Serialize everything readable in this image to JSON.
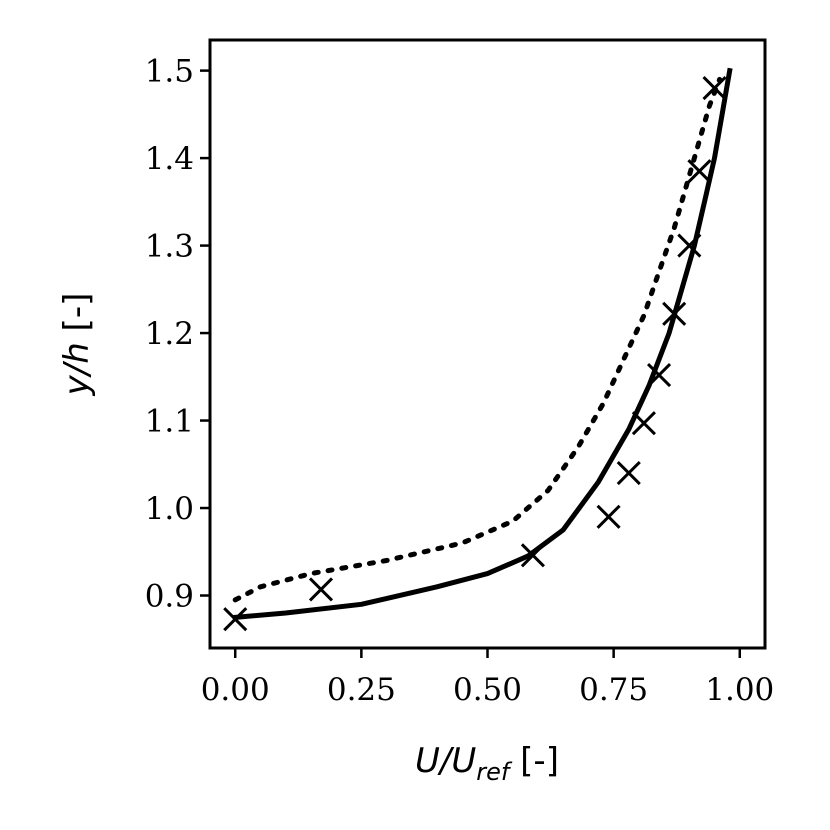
{
  "chart_data": {
    "type": "line",
    "xlabel": {
      "main": "U/U",
      "sub": "ref",
      "unit": " [-]"
    },
    "ylabel": {
      "main": "y/h",
      "unit": " [-]"
    },
    "xlim": [
      -0.05,
      1.05
    ],
    "ylim": [
      0.84,
      1.535
    ],
    "xticks": [
      "0.00",
      "0.25",
      "0.50",
      "0.75",
      "1.00"
    ],
    "xtick_values": [
      0.0,
      0.25,
      0.5,
      0.75,
      1.0
    ],
    "yticks": [
      "0.9",
      "1.0",
      "1.1",
      "1.2",
      "1.3",
      "1.4",
      "1.5"
    ],
    "ytick_values": [
      0.9,
      1.0,
      1.1,
      1.2,
      1.3,
      1.4,
      1.5
    ],
    "grid": false,
    "colors": {
      "series": "#000000"
    },
    "series": [
      {
        "style": "solid",
        "x": [
          0.0,
          0.1,
          0.25,
          0.4,
          0.5,
          0.58,
          0.65,
          0.72,
          0.78,
          0.82,
          0.86,
          0.89,
          0.91,
          0.93,
          0.95,
          0.965,
          0.98
        ],
        "y": [
          0.875,
          0.88,
          0.89,
          0.91,
          0.925,
          0.945,
          0.975,
          1.03,
          1.09,
          1.14,
          1.2,
          1.26,
          1.3,
          1.35,
          1.4,
          1.45,
          1.5
        ]
      },
      {
        "style": "dotted",
        "x": [
          0.0,
          0.05,
          0.15,
          0.3,
          0.45,
          0.55,
          0.62,
          0.68,
          0.73,
          0.77,
          0.81,
          0.84,
          0.87,
          0.9,
          0.92,
          0.94,
          0.96
        ],
        "y": [
          0.895,
          0.91,
          0.925,
          0.94,
          0.96,
          0.985,
          1.02,
          1.07,
          1.12,
          1.17,
          1.22,
          1.27,
          1.32,
          1.38,
          1.42,
          1.46,
          1.49
        ]
      },
      {
        "style": "markers",
        "marker": "x",
        "x": [
          0.0,
          0.17,
          0.59,
          0.74,
          0.78,
          0.81,
          0.84,
          0.87,
          0.9,
          0.92,
          0.95
        ],
        "y": [
          0.873,
          0.907,
          0.946,
          0.99,
          1.04,
          1.097,
          1.152,
          1.222,
          1.3,
          1.385,
          1.48
        ]
      }
    ]
  }
}
